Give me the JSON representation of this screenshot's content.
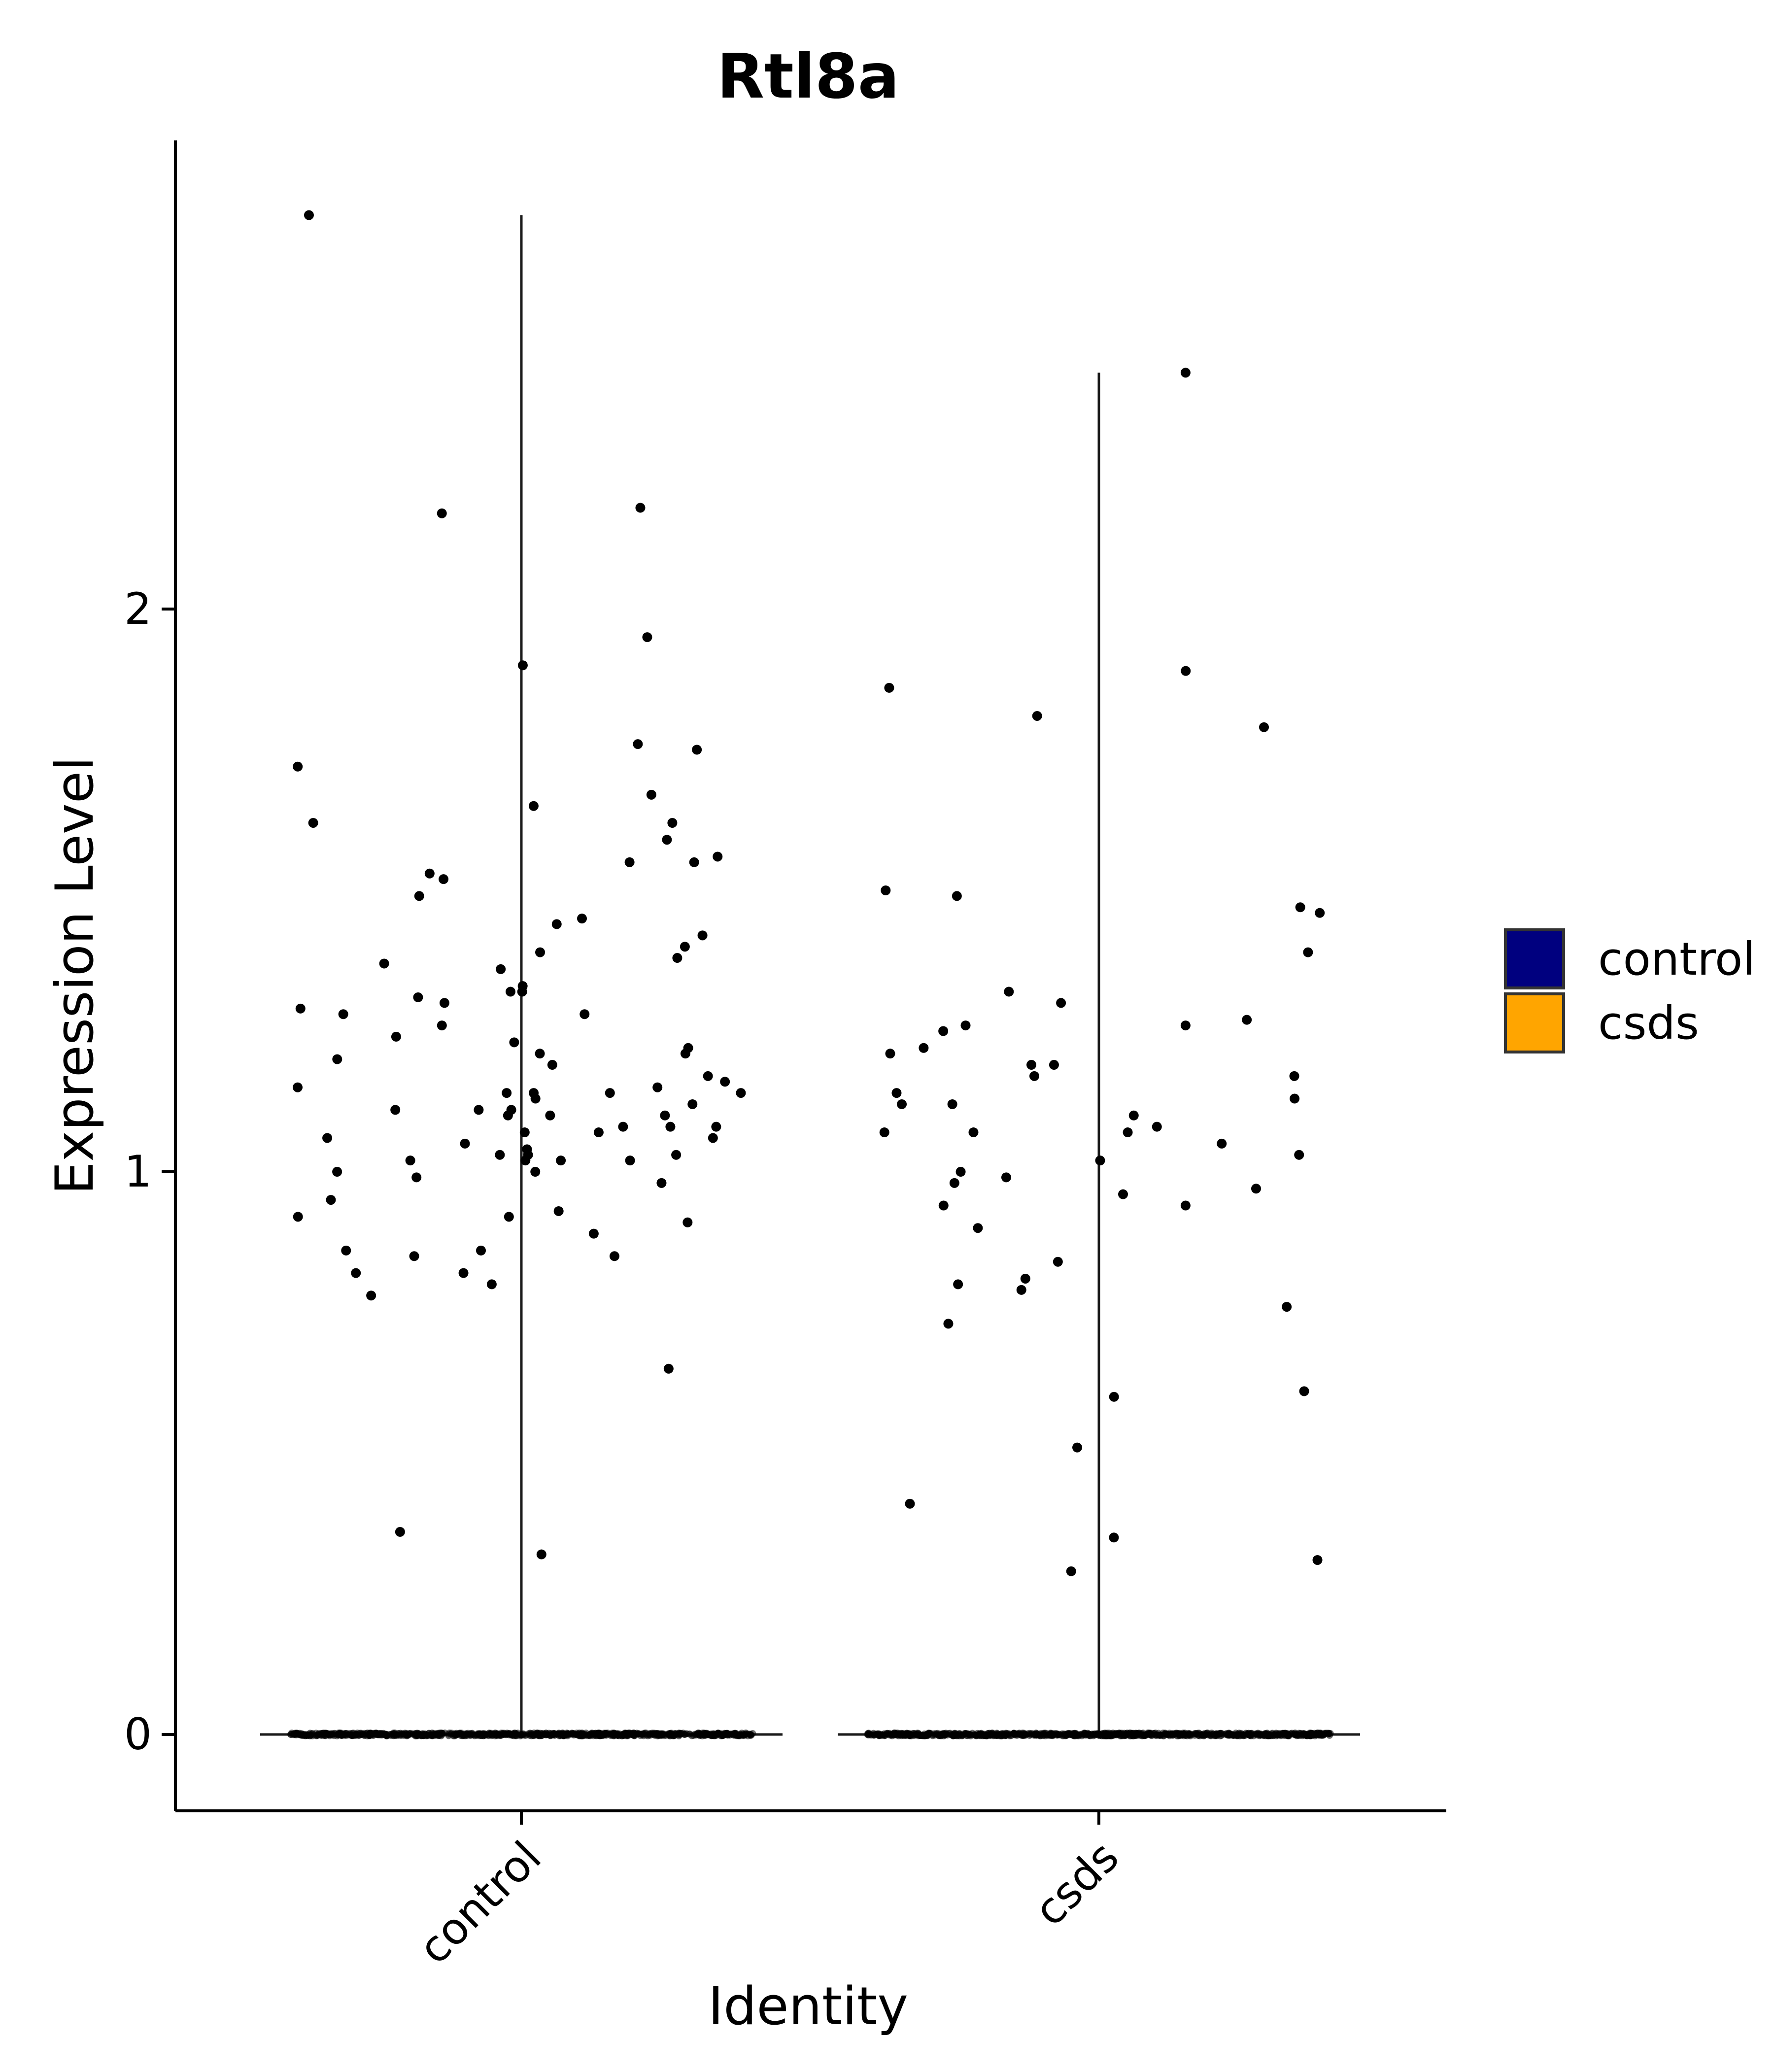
{
  "chart_data": {
    "type": "violin",
    "title": "Rtl8a",
    "xlabel": "Identity",
    "ylabel": "Expression Level",
    "categories": [
      "control",
      "csds"
    ],
    "ylim": [
      -0.13,
      2.7
    ],
    "yticks": [
      "0",
      "1",
      "2"
    ],
    "grid": false,
    "legend": {
      "placement": "right",
      "entries": [
        {
          "label": "control",
          "color": "#00007f"
        },
        {
          "label": "csds",
          "color": "#ffa500"
        }
      ]
    },
    "series": [
      {
        "name": "control",
        "color": "#00007f",
        "max": 2.7,
        "zero_count": 900,
        "points": [
          1.45,
          1.02,
          1.08,
          1.22,
          0.92,
          0.95,
          1.39,
          1.4,
          1.44,
          1.03,
          1.65,
          1.31,
          1.19,
          1.16,
          1.06,
          0.65,
          1.37,
          1.07,
          0.89,
          1.21,
          0.99,
          1.14,
          1.14,
          0.93,
          1.02,
          1.55,
          1.62,
          1.62,
          1.28,
          1.76,
          0.98,
          1.21,
          1.0,
          1.1,
          0.78,
          0.36,
          0.82,
          1.26,
          1.38,
          0.85,
          1.28,
          1.1,
          1.03,
          0.92,
          1.36,
          1.02,
          1.24,
          1.23,
          1.17,
          1.15,
          0.8,
          1.0,
          1.49,
          1.11,
          1.42,
          0.91,
          0.85,
          1.75,
          1.56,
          1.59,
          1.72,
          1.9,
          1.52,
          1.12,
          1.06,
          1.67,
          1.3,
          1.33,
          1.14,
          2.18,
          1.95,
          1.08,
          1.03,
          2.7,
          1.29,
          1.55,
          1.53,
          1.32,
          0.32,
          1.15,
          1.08,
          1.05,
          1.1,
          1.11,
          1.14,
          1.13,
          0.82,
          1.07,
          1.2,
          0.86,
          1.02,
          1.11,
          1.04,
          0.86,
          1.32,
          2.17
        ]
      },
      {
        "name": "csds",
        "color": "#ffa500",
        "max": 2.42,
        "zero_count": 900,
        "points": [
          0.98,
          1.14,
          0.84,
          0.51,
          1.03,
          1.07,
          0.6,
          1.49,
          1.19,
          1.13,
          1.81,
          0.61,
          1.0,
          1.12,
          1.26,
          1.27,
          0.41,
          0.31,
          0.79,
          1.17,
          0.96,
          1.08,
          1.26,
          0.9,
          1.32,
          2.42,
          1.5,
          1.3,
          1.02,
          0.29,
          0.97,
          1.39,
          1.17,
          1.86,
          1.12,
          1.79,
          0.8,
          0.35,
          0.76,
          1.05,
          1.19,
          0.73,
          1.1,
          0.94,
          1.46,
          1.47,
          0.99,
          0.94,
          1.89,
          1.07,
          1.07,
          1.21,
          1.22,
          1.25,
          0.81
        ]
      }
    ]
  }
}
